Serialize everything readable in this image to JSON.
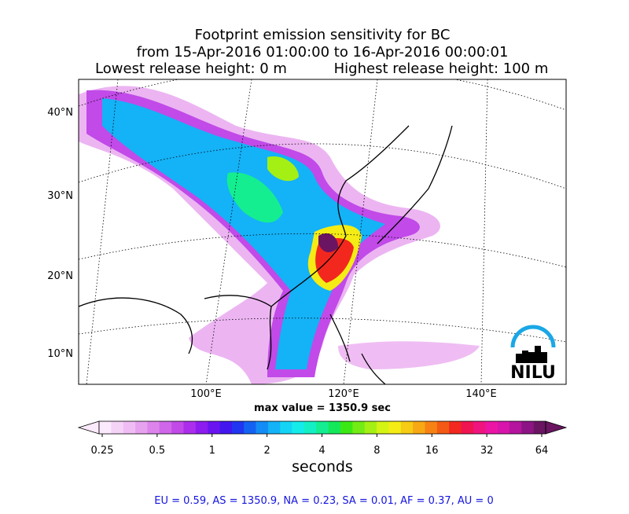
{
  "header": {
    "title": "Footprint emission sensitivity for BC",
    "period": "from 15-Apr-2016 01:00:00 to 16-Apr-2016 00:00:01",
    "lowest": "Lowest release height: 0 m",
    "highest": "Highest release height: 100 m"
  },
  "map": {
    "lat_labels": [
      "40°N",
      "30°N",
      "20°N",
      "10°N"
    ],
    "lon_labels": [
      "100°E",
      "120°E",
      "140°E"
    ],
    "logo": "NILU",
    "max_label": "max value = 1350.9 sec"
  },
  "colorbar": {
    "ticks": [
      "0.25",
      "0.5",
      "1",
      "2",
      "4",
      "8",
      "16",
      "32",
      "64"
    ],
    "label": "seconds",
    "colors": [
      "#fbeafb",
      "#f5d3f7",
      "#efbdf3",
      "#e7a2ef",
      "#dc84ec",
      "#d066ea",
      "#c14ae8",
      "#ac2eec",
      "#8d1cf0",
      "#6a14f2",
      "#4416ef",
      "#2036f0",
      "#1462f2",
      "#148cf5",
      "#14b2f7",
      "#14d4f5",
      "#14ecea",
      "#14f0c4",
      "#14ee90",
      "#14e85a",
      "#3ce814",
      "#72ec14",
      "#a4f014",
      "#d4f414",
      "#f4ec14",
      "#f6cc14",
      "#f7a814",
      "#f78214",
      "#f45a14",
      "#f2281e",
      "#f01450",
      "#f0147e",
      "#ec14a4",
      "#d814ac",
      "#b4149e",
      "#8c1484",
      "#6a1462"
    ]
  },
  "footer": "EU = 0.59,  AS = 1350.9,  NA = 0.23,  SA = 0.01,  AF = 0.37,  AU = 0"
}
